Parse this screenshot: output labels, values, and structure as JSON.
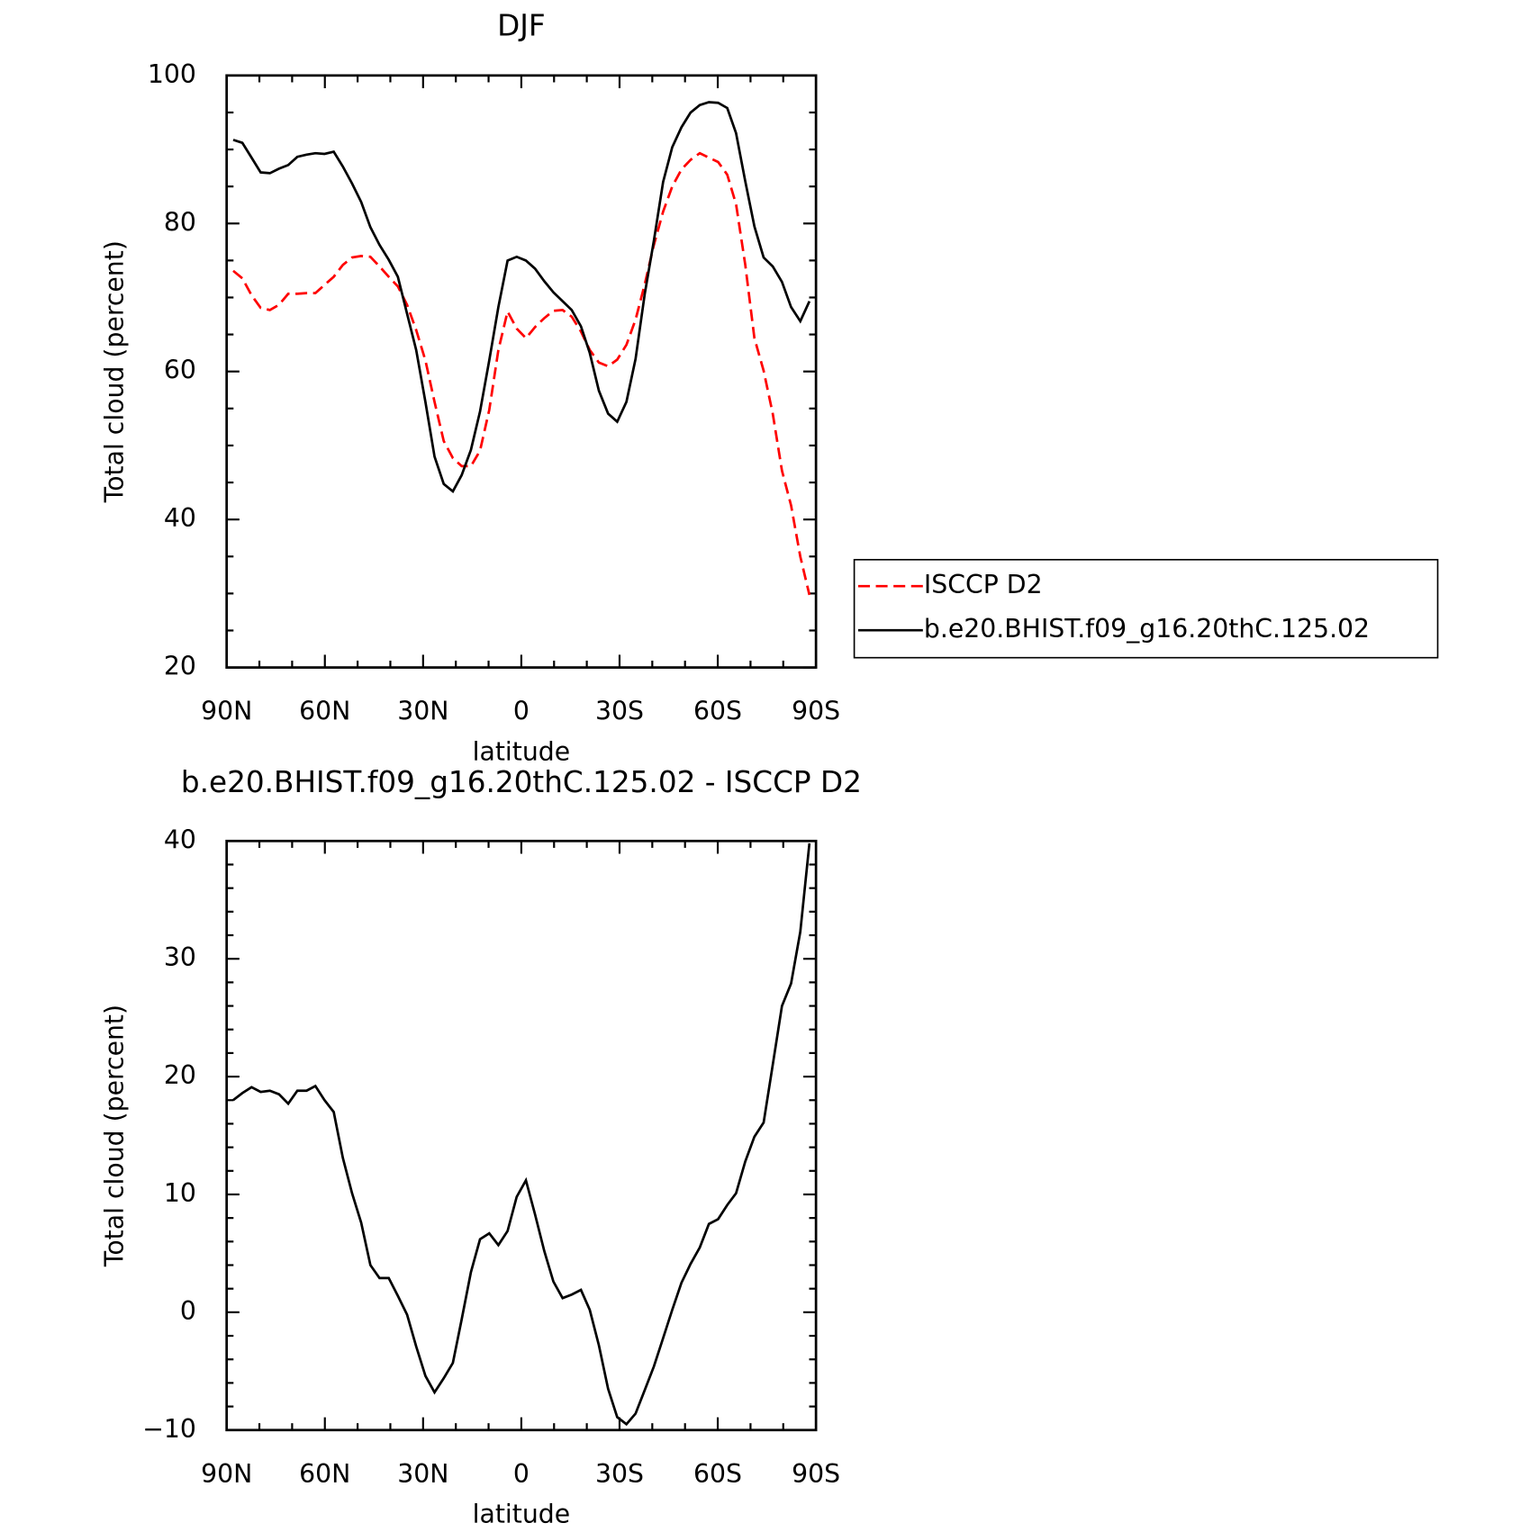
{
  "chart_data": [
    {
      "type": "line",
      "title": "DJF",
      "xlabel": "latitude",
      "ylabel": "Total cloud (percent)",
      "x": [
        88.0,
        85.2,
        82.4,
        79.6,
        76.8,
        74.0,
        71.2,
        68.4,
        65.6,
        62.9,
        60.1,
        57.3,
        54.5,
        51.7,
        48.9,
        46.1,
        43.3,
        40.5,
        37.7,
        34.9,
        32.1,
        29.3,
        26.5,
        23.7,
        20.9,
        18.2,
        15.4,
        12.6,
        9.8,
        7.0,
        4.2,
        1.4,
        -1.4,
        -4.2,
        -7.0,
        -9.8,
        -12.6,
        -15.4,
        -18.2,
        -20.9,
        -23.7,
        -26.5,
        -29.3,
        -32.1,
        -34.9,
        -37.7,
        -40.5,
        -43.3,
        -46.1,
        -48.9,
        -51.7,
        -54.5,
        -57.3,
        -60.1,
        -62.9,
        -65.6,
        -68.4,
        -71.2,
        -74.0,
        -76.8,
        -79.6,
        -82.4,
        -85.2,
        -88.0
      ],
      "series": [
        {
          "name": "ISCCP D2",
          "color": "#ff0000",
          "dashed": true,
          "values": [
            73.6,
            72.6,
            70.3,
            68.6,
            68.3,
            69.0,
            70.5,
            70.5,
            70.6,
            70.6,
            71.7,
            72.8,
            74.4,
            75.4,
            75.6,
            75.5,
            74.2,
            72.8,
            71.5,
            69.0,
            65.6,
            61.5,
            55.9,
            50.6,
            48.3,
            47.2,
            47.2,
            49.3,
            54.8,
            62.9,
            68.1,
            65.8,
            64.5,
            66.0,
            67.2,
            68.2,
            68.3,
            67.4,
            65.4,
            62.9,
            61.2,
            60.7,
            61.6,
            63.6,
            67.0,
            71.8,
            77.1,
            81.6,
            85.0,
            87.3,
            88.6,
            89.5,
            88.9,
            88.3,
            86.6,
            82.6,
            74.4,
            64.5,
            60.1,
            54.3,
            46.6,
            41.9,
            35.0,
            29.8
          ]
        },
        {
          "name": "b.e20.BHIST.f09_g16.20thC.125.02",
          "color": "#000000",
          "dashed": false,
          "values": [
            91.3,
            90.9,
            88.9,
            86.9,
            86.8,
            87.4,
            87.9,
            89.0,
            89.3,
            89.5,
            89.4,
            89.7,
            87.7,
            85.4,
            82.9,
            79.5,
            77.1,
            75.1,
            72.8,
            67.8,
            62.9,
            55.9,
            48.5,
            44.8,
            43.8,
            46.0,
            49.4,
            54.6,
            61.5,
            68.7,
            75.0,
            75.5,
            75.0,
            73.9,
            72.2,
            70.7,
            69.5,
            68.3,
            66.1,
            62.5,
            57.4,
            54.3,
            53.2,
            55.9,
            61.7,
            70.5,
            77.7,
            85.6,
            90.3,
            93.0,
            95.0,
            96.0,
            96.4,
            96.3,
            95.6,
            92.2,
            85.7,
            79.6,
            75.4,
            74.2,
            72.1,
            68.7,
            66.8,
            69.5
          ]
        }
      ],
      "xlim": [
        90,
        -90
      ],
      "xticks": [
        {
          "value": 90,
          "label": "90N"
        },
        {
          "value": 60,
          "label": "60N"
        },
        {
          "value": 30,
          "label": "30N"
        },
        0,
        {
          "value": -30,
          "label": "30S"
        },
        {
          "value": -60,
          "label": "60S"
        },
        {
          "value": -90,
          "label": "90S"
        }
      ],
      "xminorticks": [
        80,
        70,
        50,
        40,
        20,
        10,
        -10,
        -20,
        -40,
        -50,
        -70,
        -80
      ],
      "ylim": [
        20,
        100
      ],
      "yticks": [
        20,
        40,
        60,
        80,
        100
      ],
      "yminorticks": [
        25,
        30,
        35,
        45,
        50,
        55,
        65,
        70,
        75,
        85,
        90,
        95
      ],
      "legend": "right"
    },
    {
      "type": "line",
      "title": "b.e20.BHIST.f09_g16.20thC.125.02 - ISCCP D2",
      "xlabel": "latitude",
      "ylabel": "Total cloud (percent)",
      "x": [
        88.0,
        85.2,
        82.4,
        79.6,
        76.8,
        74.0,
        71.2,
        68.4,
        65.6,
        62.9,
        60.1,
        57.3,
        54.5,
        51.7,
        48.9,
        46.1,
        43.3,
        40.5,
        37.7,
        34.9,
        32.1,
        29.3,
        26.5,
        23.7,
        20.9,
        18.2,
        15.4,
        12.6,
        9.8,
        7.0,
        4.2,
        1.4,
        -1.4,
        -4.2,
        -7.0,
        -9.8,
        -12.6,
        -15.4,
        -18.2,
        -20.9,
        -23.7,
        -26.5,
        -29.3,
        -32.1,
        -34.9,
        -37.7,
        -40.5,
        -43.3,
        -46.1,
        -48.9,
        -51.7,
        -54.5,
        -57.3,
        -60.1,
        -62.9,
        -65.6,
        -68.4,
        -71.2,
        -74.0,
        -76.8,
        -79.6,
        -82.4,
        -85.2,
        -88.0
      ],
      "series": [
        {
          "color": "#000000",
          "dashed": false,
          "values": [
            18.0,
            18.6,
            19.1,
            18.7,
            18.8,
            18.5,
            17.7,
            18.8,
            18.8,
            19.2,
            18.0,
            17.0,
            13.1,
            10.1,
            7.6,
            4.0,
            2.9,
            2.9,
            1.4,
            -0.2,
            -2.9,
            -5.4,
            -6.8,
            -5.6,
            -4.3,
            -0.6,
            3.4,
            6.2,
            6.7,
            5.7,
            6.9,
            9.8,
            11.2,
            8.3,
            5.2,
            2.6,
            1.2,
            1.5,
            1.9,
            0.2,
            -2.8,
            -6.5,
            -8.9,
            -9.5,
            -8.6,
            -6.6,
            -4.6,
            -2.2,
            0.2,
            2.5,
            4.1,
            5.5,
            7.5,
            7.9,
            9.1,
            10.1,
            12.8,
            14.9,
            16.1,
            21.0,
            26.0,
            27.9,
            32.3,
            39.8
          ]
        }
      ],
      "xlim": [
        90,
        -90
      ],
      "xticks": [
        {
          "value": 90,
          "label": "90N"
        },
        {
          "value": 60,
          "label": "60N"
        },
        {
          "value": 30,
          "label": "30N"
        },
        0,
        {
          "value": -30,
          "label": "30S"
        },
        {
          "value": -60,
          "label": "60S"
        },
        {
          "value": -90,
          "label": "90S"
        }
      ],
      "xminorticks": [
        80,
        70,
        50,
        40,
        20,
        10,
        -10,
        -20,
        -40,
        -50,
        -70,
        -80
      ],
      "ylim": [
        -10,
        40
      ],
      "yticks": [
        {
          "value": -10,
          "label": "−10"
        },
        0,
        10,
        20,
        30,
        40
      ],
      "yminorticks": [
        -8,
        -6,
        -4,
        -2,
        2,
        4,
        6,
        8,
        12,
        14,
        16,
        18,
        22,
        24,
        26,
        28,
        32,
        34,
        36,
        38
      ]
    }
  ]
}
